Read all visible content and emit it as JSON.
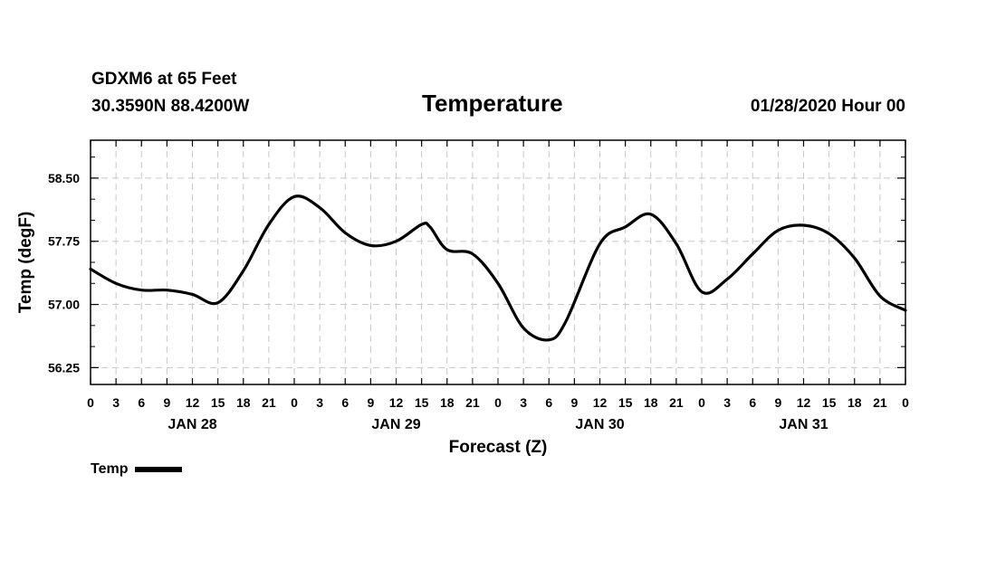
{
  "header": {
    "station": "GDXM6 at 65 Feet",
    "coords": "30.3590N 88.4200W",
    "title": "Temperature",
    "datetime": "01/28/2020 Hour 00"
  },
  "chart_data": {
    "type": "line",
    "title": "Temperature",
    "xlabel": "Forecast (Z)",
    "ylabel": "Temp (degF)",
    "ylim": [
      56.05,
      58.95
    ],
    "yticks": [
      56.25,
      57.0,
      57.75,
      58.5
    ],
    "ytick_labels": [
      "56.25",
      "57.00",
      "57.75",
      "58.50"
    ],
    "xlim": [
      0,
      96
    ],
    "xtick_labels": [
      "0",
      "3",
      "6",
      "9",
      "12",
      "15",
      "18",
      "21",
      "0",
      "3",
      "6",
      "9",
      "12",
      "15",
      "18",
      "21",
      "0",
      "3",
      "6",
      "9",
      "12",
      "15",
      "18",
      "21",
      "0",
      "3",
      "6",
      "9",
      "12",
      "15",
      "18",
      "21",
      "0"
    ],
    "day_labels": [
      {
        "hour": 12,
        "label": "JAN 28"
      },
      {
        "hour": 36,
        "label": "JAN 29"
      },
      {
        "hour": 60,
        "label": "JAN 30"
      },
      {
        "hour": 84,
        "label": "JAN 31"
      }
    ],
    "grid": true,
    "legend_position": "bottom-left",
    "series": [
      {
        "name": "Temp",
        "color": "#000000",
        "x": [
          0,
          3,
          6,
          9,
          12,
          15,
          18,
          21,
          24,
          27,
          30,
          33,
          36,
          39,
          40,
          42,
          45,
          48,
          51,
          54,
          56,
          60,
          63,
          66,
          69,
          72,
          75,
          78,
          81,
          84,
          87,
          90,
          93,
          96
        ],
        "y": [
          57.42,
          57.25,
          57.17,
          57.17,
          57.12,
          57.02,
          57.4,
          57.95,
          58.28,
          58.15,
          57.85,
          57.7,
          57.75,
          57.95,
          57.92,
          57.65,
          57.6,
          57.25,
          56.72,
          56.58,
          56.8,
          57.72,
          57.92,
          58.07,
          57.72,
          57.15,
          57.3,
          57.6,
          57.88,
          57.94,
          57.84,
          57.55,
          57.1,
          56.93
        ]
      }
    ]
  },
  "legend": {
    "label": "Temp"
  }
}
